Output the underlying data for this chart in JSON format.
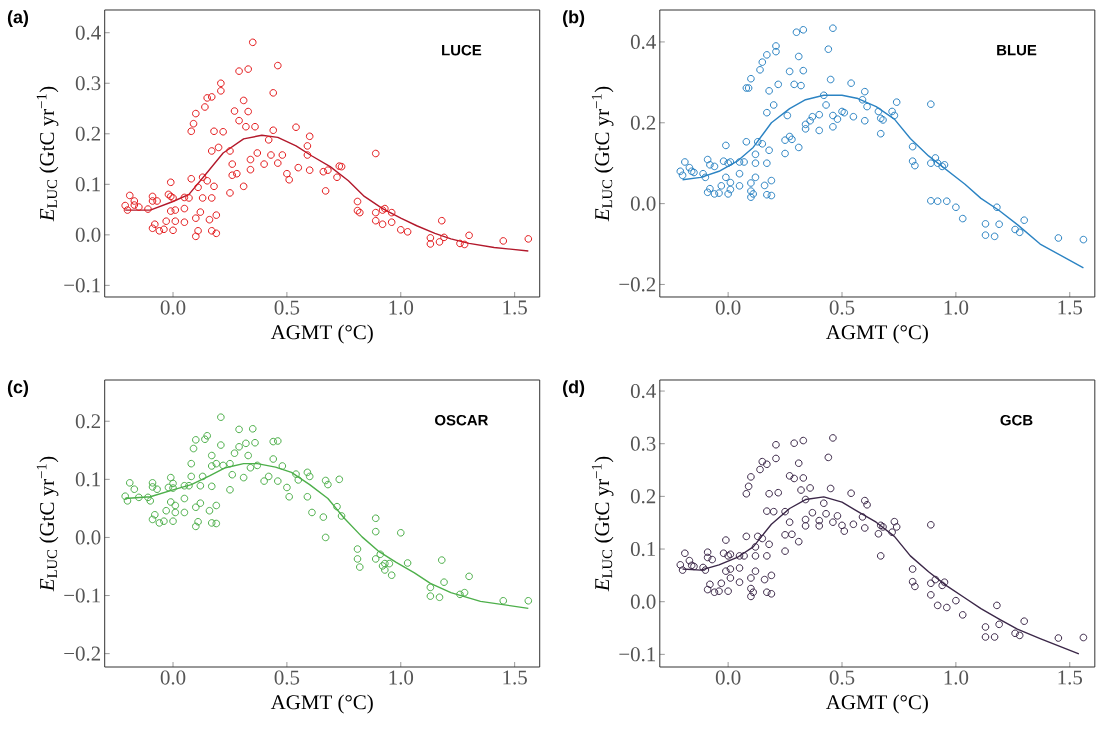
{
  "chart_data": [
    {
      "type": "scatter",
      "title": "(a)",
      "xlabel": "AGMT (°C)",
      "ylabel": "*E*$_{LUC}$ (GtC yr$^{−1}$)",
      "annotations": [
        "LUCE"
      ],
      "xlim": [
        -0.3,
        1.61
      ],
      "ylim": [
        -0.123,
        0.445
      ],
      "xticks": [
        {
          "value": 0,
          "label": "0.0"
        },
        {
          "value": 0.5,
          "label": "0.5"
        },
        {
          "value": 1,
          "label": "1.0"
        },
        {
          "value": 1.5,
          "label": "1.5"
        }
      ],
      "yticks": [
        {
          "value": -0.1,
          "label": "−0.1"
        },
        {
          "value": 0,
          "label": "0.0"
        },
        {
          "value": 0.1,
          "label": "0.1"
        },
        {
          "value": 0.2,
          "label": "0.2"
        },
        {
          "value": 0.3,
          "label": "0.3"
        },
        {
          "value": 0.4,
          "label": "0.4"
        }
      ],
      "series": [
        {
          "color": "#e41a1c",
          "marker": "circle",
          "x": [
            -0.21,
            -0.2,
            -0.19,
            -0.17,
            -0.17,
            -0.15,
            -0.11,
            -0.09,
            -0.09,
            -0.07,
            -0.09,
            -0.08,
            -0.06,
            -0.04,
            -0.03,
            -0.01,
            -0.01,
            -0.02,
            -0.01,
            0.0,
            0.0,
            0.01,
            0.01,
            0.05,
            0.05,
            0.05,
            0.07,
            0.08,
            0.08,
            0.09,
            0.1,
            0.1,
            0.1,
            0.11,
            0.11,
            0.12,
            0.13,
            0.13,
            0.14,
            0.15,
            0.17,
            0.15,
            0.16,
            0.17,
            0.17,
            0.17,
            0.18,
            0.18,
            0.19,
            0.19,
            0.2,
            0.21,
            0.21,
            0.22,
            0.25,
            0.25,
            0.26,
            0.26,
            0.27,
            0.28,
            0.29,
            0.29,
            0.31,
            0.31,
            0.32,
            0.33,
            0.33,
            0.34,
            0.34,
            0.35,
            0.36,
            0.37,
            0.4,
            0.42,
            0.43,
            0.44,
            0.44,
            0.46,
            0.46,
            0.48,
            0.5,
            0.51,
            0.54,
            0.55,
            0.59,
            0.59,
            0.6,
            0.6,
            0.67,
            0.66,
            0.68,
            0.72,
            0.73,
            0.74,
            0.81,
            0.81,
            0.82,
            0.89,
            0.89,
            0.89,
            0.92,
            0.92,
            0.93,
            0.96,
            0.96,
            1.0,
            1.03,
            1.13,
            1.13,
            1.17,
            1.18,
            1.19,
            1.26,
            1.28,
            1.3,
            1.45,
            1.56
          ],
          "values": [
            0.058,
            0.049,
            0.078,
            0.067,
            0.059,
            0.055,
            0.051,
            0.076,
            0.067,
            0.067,
            0.013,
            0.021,
            0.008,
            0.011,
            0.027,
            0.047,
            0.104,
            0.08,
            0.076,
            0.073,
            0.009,
            0.027,
            0.049,
            0.025,
            0.052,
            0.074,
            0.073,
            0.111,
            0.205,
            0.22,
            0.24,
            0.033,
            -0.003,
            0.008,
            0.094,
            0.045,
            0.114,
            0.073,
            0.253,
            0.271,
            0.273,
            0.107,
            0.03,
            0.008,
            0.166,
            0.073,
            0.205,
            0.096,
            0.039,
            0.003,
            0.173,
            0.3,
            0.285,
            0.204,
            0.166,
            0.083,
            0.118,
            0.14,
            0.245,
            0.121,
            0.226,
            0.324,
            0.266,
            0.096,
            0.214,
            0.328,
            0.244,
            0.129,
            0.149,
            0.381,
            0.214,
            0.162,
            0.14,
            0.188,
            0.158,
            0.281,
            0.207,
            0.335,
            0.142,
            0.158,
            0.121,
            0.109,
            0.213,
            0.133,
            0.158,
            0.176,
            0.195,
            0.128,
            0.087,
            0.125,
            0.128,
            0.114,
            0.136,
            0.135,
            0.066,
            0.048,
            0.044,
            0.161,
            0.044,
            0.028,
            0.049,
            0.021,
            0.052,
            0.025,
            0.044,
            0.01,
            0.006,
            -0.006,
            -0.018,
            -0.014,
            0.028,
            -0.005,
            -0.017,
            -0.019,
            -0.001,
            -0.012,
            -0.008
          ]
        },
        {
          "type": "line",
          "color": "#b2182b",
          "line_style": "solid",
          "x": [
            -0.21,
            -0.1,
            0,
            0.07,
            0.14,
            0.22,
            0.31,
            0.39,
            0.46,
            0.54,
            0.61,
            0.69,
            0.77,
            0.84,
            0.92,
            1.0,
            1.07,
            1.15,
            1.22,
            1.3,
            1.41,
            1.56
          ],
          "values": [
            0.049,
            0.049,
            0.066,
            0.08,
            0.118,
            0.162,
            0.19,
            0.197,
            0.193,
            0.176,
            0.156,
            0.135,
            0.107,
            0.076,
            0.052,
            0.033,
            0.018,
            0.003,
            -0.008,
            -0.017,
            -0.025,
            -0.032
          ]
        }
      ]
    },
    {
      "type": "scatter",
      "title": "(b)",
      "xlabel": "AGMT (°C)",
      "ylabel": "*E*$_{LUC}$ (GtC yr$^{−1}$)",
      "annotations": [
        "BLUE"
      ],
      "xlim": [
        -0.3,
        1.61
      ],
      "ylim": [
        -0.231,
        0.479
      ],
      "xticks": [
        {
          "value": 0,
          "label": "0.0"
        },
        {
          "value": 0.5,
          "label": "0.5"
        },
        {
          "value": 1,
          "label": "1.0"
        },
        {
          "value": 1.5,
          "label": "1.5"
        }
      ],
      "yticks": [
        {
          "value": -0.2,
          "label": "−0.2"
        },
        {
          "value": 0,
          "label": "0.0"
        },
        {
          "value": 0.2,
          "label": "0.2"
        },
        {
          "value": 0.4,
          "label": "0.4"
        }
      ],
      "series": [
        {
          "color": "#2b83c3",
          "marker": "circle",
          "x": [
            -0.21,
            -0.2,
            -0.19,
            -0.17,
            -0.16,
            -0.15,
            -0.11,
            -0.1,
            -0.09,
            -0.08,
            -0.06,
            -0.09,
            -0.08,
            -0.06,
            -0.04,
            -0.03,
            -0.01,
            -0.01,
            -0.02,
            0.0,
            0.01,
            0.0,
            0.01,
            0.01,
            0.05,
            0.05,
            0.05,
            0.07,
            0.08,
            0.08,
            0.09,
            0.1,
            0.1,
            0.1,
            0.1,
            0.11,
            0.12,
            0.12,
            0.12,
            0.13,
            0.14,
            0.15,
            0.15,
            0.17,
            0.17,
            0.17,
            0.16,
            0.17,
            0.18,
            0.18,
            0.19,
            0.19,
            0.2,
            0.21,
            0.21,
            0.22,
            0.25,
            0.25,
            0.26,
            0.27,
            0.28,
            0.27,
            0.3,
            0.29,
            0.31,
            0.31,
            0.32,
            0.33,
            0.33,
            0.34,
            0.34,
            0.36,
            0.37,
            0.4,
            0.4,
            0.42,
            0.43,
            0.44,
            0.45,
            0.46,
            0.46,
            0.46,
            0.48,
            0.5,
            0.51,
            0.54,
            0.55,
            0.59,
            0.6,
            0.6,
            0.61,
            0.66,
            0.67,
            0.67,
            0.68,
            0.72,
            0.73,
            0.74,
            0.81,
            0.81,
            0.82,
            0.89,
            0.89,
            0.89,
            0.91,
            0.92,
            0.92,
            0.94,
            0.95,
            0.96,
            1.0,
            1.03,
            1.13,
            1.13,
            1.17,
            1.18,
            1.19,
            1.26,
            1.28,
            1.3,
            1.45,
            1.56
          ],
          "values": [
            0.08,
            0.07,
            0.103,
            0.089,
            0.08,
            0.077,
            0.074,
            0.065,
            0.109,
            0.096,
            0.092,
            0.028,
            0.037,
            0.024,
            0.026,
            0.044,
            0.065,
            0.144,
            0.105,
            0.1,
            0.103,
            0.024,
            0.052,
            0.035,
            0.074,
            0.044,
            0.103,
            0.103,
            0.153,
            0.286,
            0.286,
            0.309,
            0.051,
            0.031,
            0.016,
            0.024,
            0.1,
            0.122,
            0.065,
            0.153,
            0.331,
            0.35,
            0.148,
            0.368,
            0.225,
            0.1,
            0.045,
            0.022,
            0.279,
            0.132,
            0.057,
            0.02,
            0.244,
            0.39,
            0.376,
            0.295,
            0.124,
            0.157,
            0.218,
            0.166,
            0.159,
            0.327,
            0.424,
            0.295,
            0.139,
            0.364,
            0.292,
            0.43,
            0.329,
            0.185,
            0.196,
            0.205,
            0.215,
            0.181,
            0.22,
            0.268,
            0.244,
            0.382,
            0.307,
            0.434,
            0.19,
            0.218,
            0.209,
            0.228,
            0.225,
            0.298,
            0.215,
            0.257,
            0.277,
            0.205,
            0.24,
            0.228,
            0.173,
            0.211,
            0.207,
            0.228,
            0.218,
            0.251,
            0.141,
            0.105,
            0.094,
            0.246,
            0.1,
            0.007,
            0.113,
            0.1,
            0.006,
            0.092,
            0.096,
            0.006,
            -0.009,
            -0.037,
            -0.05,
            -0.078,
            -0.081,
            -0.009,
            -0.051,
            -0.064,
            -0.071,
            -0.041,
            -0.085,
            -0.089
          ]
        },
        {
          "type": "line",
          "color": "#2b83c3",
          "line_style": "solid",
          "x": [
            -0.2,
            -0.12,
            -0.04,
            0.04,
            0.11,
            0.19,
            0.27,
            0.34,
            0.42,
            0.5,
            0.57,
            0.65,
            0.73,
            0.8,
            0.88,
            0.96,
            1.04,
            1.11,
            1.19,
            1.27,
            1.37,
            1.56
          ],
          "values": [
            0.059,
            0.065,
            0.08,
            0.105,
            0.139,
            0.2,
            0.235,
            0.257,
            0.268,
            0.268,
            0.26,
            0.24,
            0.209,
            0.161,
            0.118,
            0.083,
            0.048,
            0.013,
            -0.017,
            -0.052,
            -0.1,
            -0.159
          ]
        }
      ]
    },
    {
      "type": "scatter",
      "title": "(c)",
      "xlabel": "AGMT (°C)",
      "ylabel": "*E*$_{LUC}$ (GtC yr$^{−1}$)",
      "annotations": [
        "OSCAR"
      ],
      "xlim": [
        -0.3,
        1.61
      ],
      "ylim": [
        -0.223,
        0.271
      ],
      "xticks": [
        {
          "value": 0,
          "label": "0.0"
        },
        {
          "value": 0.5,
          "label": "0.5"
        },
        {
          "value": 1,
          "label": "1.0"
        },
        {
          "value": 1.5,
          "label": "1.5"
        }
      ],
      "yticks": [
        {
          "value": -0.2,
          "label": "−0.2"
        },
        {
          "value": -0.1,
          "label": "−0.1"
        },
        {
          "value": 0,
          "label": "0.0"
        },
        {
          "value": 0.1,
          "label": "0.1"
        },
        {
          "value": 0.2,
          "label": "0.2"
        }
      ],
      "series": [
        {
          "color": "#4daf4a",
          "marker": "circle",
          "x": [
            -0.21,
            -0.2,
            -0.19,
            -0.17,
            -0.15,
            -0.11,
            -0.1,
            -0.09,
            -0.09,
            -0.07,
            -0.09,
            -0.08,
            -0.06,
            -0.04,
            -0.03,
            -0.01,
            -0.01,
            -0.02,
            0.0,
            0.0,
            0.0,
            0.01,
            0.01,
            0.05,
            0.05,
            0.05,
            0.07,
            0.08,
            0.08,
            0.09,
            0.1,
            0.1,
            0.1,
            0.11,
            0.12,
            0.12,
            0.13,
            0.14,
            0.15,
            0.16,
            0.17,
            0.17,
            0.17,
            0.17,
            0.19,
            0.19,
            0.19,
            0.21,
            0.21,
            0.22,
            0.25,
            0.25,
            0.26,
            0.27,
            0.29,
            0.29,
            0.31,
            0.32,
            0.33,
            0.34,
            0.35,
            0.36,
            0.37,
            0.4,
            0.42,
            0.44,
            0.44,
            0.46,
            0.46,
            0.48,
            0.5,
            0.51,
            0.54,
            0.55,
            0.59,
            0.59,
            0.6,
            0.61,
            0.66,
            0.67,
            0.67,
            0.68,
            0.72,
            0.73,
            0.74,
            0.81,
            0.81,
            0.82,
            0.89,
            0.89,
            0.89,
            0.91,
            0.92,
            0.93,
            0.93,
            0.95,
            0.96,
            1.0,
            1.03,
            1.13,
            1.13,
            1.17,
            1.18,
            1.19,
            1.26,
            1.28,
            1.3,
            1.45,
            1.56
          ],
          "values": [
            0.071,
            0.063,
            0.094,
            0.083,
            0.069,
            0.069,
            0.063,
            0.094,
            0.087,
            0.083,
            0.031,
            0.039,
            0.025,
            0.028,
            0.046,
            0.061,
            0.103,
            0.086,
            0.093,
            0.085,
            0.028,
            0.043,
            0.055,
            0.043,
            0.067,
            0.089,
            0.089,
            0.105,
            0.127,
            0.153,
            0.168,
            0.052,
            0.019,
            0.027,
            0.059,
            0.089,
            0.105,
            0.169,
            0.175,
            0.046,
            0.025,
            0.141,
            0.123,
            0.088,
            0.055,
            0.024,
            0.127,
            0.207,
            0.159,
            0.124,
            0.127,
            0.082,
            0.108,
            0.145,
            0.186,
            0.156,
            0.103,
            0.162,
            0.141,
            0.12,
            0.187,
            0.163,
            0.124,
            0.097,
            0.105,
            0.135,
            0.165,
            0.166,
            0.097,
            0.123,
            0.086,
            0.07,
            0.109,
            0.099,
            0.112,
            0.07,
            0.105,
            0.043,
            0.035,
            0.098,
            0.0,
            0.091,
            0.053,
            0.1,
            0.037,
            -0.02,
            -0.037,
            -0.051,
            0.033,
            0.01,
            -0.037,
            -0.029,
            -0.049,
            -0.045,
            -0.056,
            -0.045,
            -0.065,
            0.008,
            -0.044,
            -0.086,
            -0.101,
            -0.103,
            -0.039,
            -0.077,
            -0.098,
            -0.095,
            -0.067,
            -0.109,
            -0.109
          ]
        },
        {
          "type": "line",
          "color": "#4daf4a",
          "line_style": "solid",
          "x": [
            -0.21,
            -0.1,
            0,
            0.08,
            0.16,
            0.23,
            0.31,
            0.37,
            0.45,
            0.52,
            0.6,
            0.68,
            0.75,
            0.83,
            0.9,
            0.98,
            1.06,
            1.13,
            1.22,
            1.35,
            1.56
          ],
          "values": [
            0.067,
            0.07,
            0.082,
            0.091,
            0.106,
            0.12,
            0.127,
            0.127,
            0.121,
            0.112,
            0.091,
            0.067,
            0.034,
            0.001,
            -0.023,
            -0.043,
            -0.061,
            -0.079,
            -0.095,
            -0.11,
            -0.122
          ]
        }
      ]
    },
    {
      "type": "scatter",
      "title": "(d)",
      "xlabel": "AGMT (°C)",
      "ylabel": "*E*$_{LUC}$ (GtC yr$^{−1}$)",
      "annotations": [
        "GCB"
      ],
      "xlim": [
        -0.3,
        1.61
      ],
      "ylim": [
        -0.124,
        0.421
      ],
      "xticks": [
        {
          "value": 0,
          "label": "0.0"
        },
        {
          "value": 0.5,
          "label": "0.5"
        },
        {
          "value": 1,
          "label": "1.0"
        },
        {
          "value": 1.5,
          "label": "1.5"
        }
      ],
      "yticks": [
        {
          "value": -0.1,
          "label": "−0.1"
        },
        {
          "value": 0,
          "label": "0.0"
        },
        {
          "value": 0.1,
          "label": "0.1"
        },
        {
          "value": 0.2,
          "label": "0.2"
        },
        {
          "value": 0.3,
          "label": "0.3"
        },
        {
          "value": 0.4,
          "label": "0.4"
        }
      ],
      "series": [
        {
          "color": "#3b2748",
          "marker": "circle",
          "x": [
            -0.21,
            -0.2,
            -0.19,
            -0.17,
            -0.16,
            -0.15,
            -0.11,
            -0.1,
            -0.09,
            -0.09,
            -0.07,
            -0.09,
            -0.08,
            -0.06,
            -0.04,
            -0.03,
            -0.01,
            -0.01,
            -0.02,
            0.0,
            0.01,
            0.0,
            0.01,
            0.01,
            0.05,
            0.05,
            0.05,
            0.07,
            0.08,
            0.08,
            0.09,
            0.1,
            0.1,
            0.1,
            0.1,
            0.11,
            0.12,
            0.12,
            0.12,
            0.13,
            0.14,
            0.15,
            0.15,
            0.17,
            0.17,
            0.17,
            0.16,
            0.17,
            0.18,
            0.18,
            0.19,
            0.19,
            0.2,
            0.21,
            0.21,
            0.22,
            0.25,
            0.25,
            0.25,
            0.27,
            0.28,
            0.27,
            0.29,
            0.29,
            0.31,
            0.31,
            0.32,
            0.33,
            0.33,
            0.34,
            0.34,
            0.34,
            0.36,
            0.37,
            0.4,
            0.4,
            0.42,
            0.43,
            0.44,
            0.45,
            0.46,
            0.46,
            0.48,
            0.5,
            0.51,
            0.54,
            0.55,
            0.59,
            0.6,
            0.6,
            0.61,
            0.66,
            0.67,
            0.67,
            0.68,
            0.72,
            0.73,
            0.74,
            0.81,
            0.81,
            0.82,
            0.89,
            0.89,
            0.89,
            0.91,
            0.92,
            0.94,
            0.95,
            0.96,
            1.0,
            1.03,
            1.13,
            1.13,
            1.17,
            1.18,
            1.19,
            1.26,
            1.28,
            1.3,
            1.45,
            1.56
          ],
          "values": [
            0.07,
            0.06,
            0.092,
            0.078,
            0.069,
            0.067,
            0.065,
            0.06,
            0.094,
            0.084,
            0.08,
            0.023,
            0.033,
            0.018,
            0.02,
            0.035,
            0.058,
            0.117,
            0.092,
            0.087,
            0.09,
            0.02,
            0.045,
            0.062,
            0.064,
            0.037,
            0.087,
            0.087,
            0.124,
            0.205,
            0.219,
            0.237,
            0.045,
            0.025,
            0.01,
            0.018,
            0.087,
            0.104,
            0.058,
            0.124,
            0.251,
            0.266,
            0.12,
            0.261,
            0.172,
            0.087,
            0.042,
            0.018,
            0.205,
            0.109,
            0.05,
            0.015,
            0.171,
            0.298,
            0.272,
            0.207,
            0.096,
            0.127,
            0.171,
            0.151,
            0.128,
            0.239,
            0.301,
            0.234,
            0.114,
            0.263,
            0.212,
            0.306,
            0.235,
            0.144,
            0.194,
            0.156,
            0.216,
            0.169,
            0.144,
            0.154,
            0.187,
            0.167,
            0.274,
            0.215,
            0.311,
            0.151,
            0.163,
            0.145,
            0.134,
            0.206,
            0.147,
            0.161,
            0.192,
            0.14,
            0.184,
            0.129,
            0.087,
            0.145,
            0.142,
            0.132,
            0.152,
            0.142,
            0.062,
            0.038,
            0.029,
            0.146,
            0.035,
            0.013,
            0.042,
            -0.007,
            0.031,
            0.037,
            -0.011,
            0.002,
            -0.025,
            -0.048,
            -0.067,
            -0.067,
            -0.007,
            -0.043,
            -0.06,
            -0.064,
            -0.037,
            -0.069,
            -0.068
          ]
        },
        {
          "type": "line",
          "color": "#3b2748",
          "line_style": "solid",
          "x": [
            -0.2,
            -0.12,
            -0.04,
            0.04,
            0.11,
            0.19,
            0.27,
            0.34,
            0.42,
            0.5,
            0.57,
            0.65,
            0.73,
            0.8,
            0.88,
            0.96,
            1.04,
            1.11,
            1.19,
            1.27,
            1.37,
            1.54
          ],
          "values": [
            0.062,
            0.06,
            0.07,
            0.084,
            0.104,
            0.147,
            0.177,
            0.194,
            0.199,
            0.189,
            0.171,
            0.151,
            0.124,
            0.087,
            0.057,
            0.03,
            0.007,
            -0.013,
            -0.033,
            -0.052,
            -0.07,
            -0.099
          ]
        }
      ]
    }
  ]
}
